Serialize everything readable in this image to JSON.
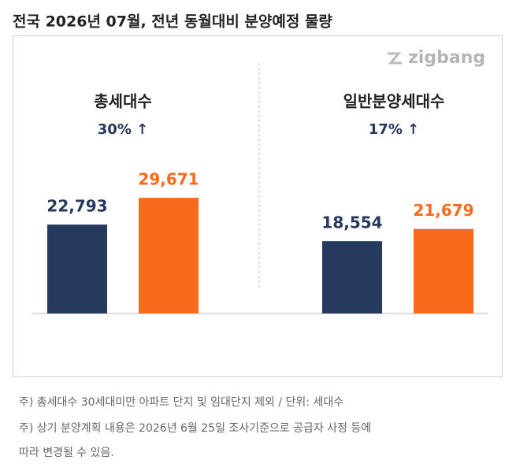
{
  "title": "전국 2026년 07월, 전년 동월대비 분양예정 물량",
  "logo": "zigbang",
  "chart_data": [
    {
      "type": "bar",
      "title": "총세대수",
      "annotation": "30% ↑",
      "values": [
        22793,
        29671
      ],
      "value_labels": [
        "22,793",
        "29,671"
      ],
      "colors": [
        "#253a5e",
        "#f96a1c"
      ]
    },
    {
      "type": "bar",
      "title": "일반분양세대수",
      "annotation": "17% ↑",
      "values": [
        18554,
        21679
      ],
      "value_labels": [
        "18,554",
        "21,679"
      ],
      "colors": [
        "#253a5e",
        "#f96a1c"
      ]
    }
  ],
  "notes": [
    "주) 총세대수 30세대미만 아파트  단지 및 임대단지 제외 / 단위: 세대수",
    "주) 상기 분양계획 내용은 2026년 6월 25일 조사기준으로 공급자 사정 등에",
    "따라 변경될 수 있음."
  ]
}
